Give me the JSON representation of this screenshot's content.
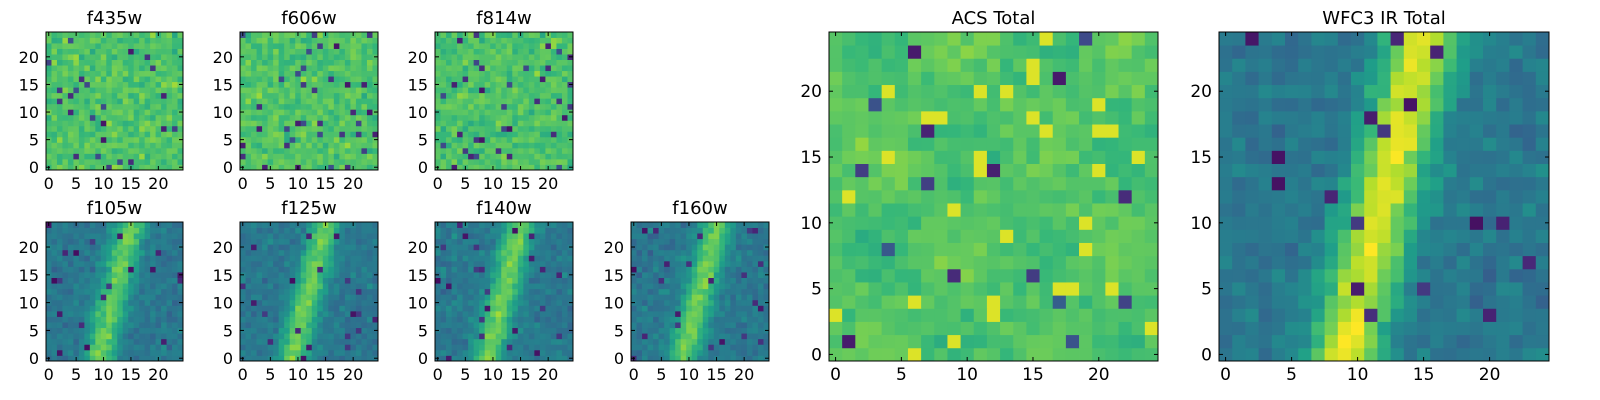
{
  "chart_data": [
    {
      "type": "heatmap",
      "title": "f435w",
      "xlabel": "",
      "ylabel": "",
      "xlim": [
        -0.5,
        24.5
      ],
      "ylim": [
        -0.5,
        24.5
      ],
      "xticks": [
        0,
        5,
        10,
        15,
        20
      ],
      "yticks": [
        0,
        5,
        10,
        15,
        20
      ],
      "grid": false,
      "colormap": "viridis",
      "pattern": "noise",
      "seed": 11
    },
    {
      "type": "heatmap",
      "title": "f606w",
      "xlabel": "",
      "ylabel": "",
      "xlim": [
        -0.5,
        24.5
      ],
      "ylim": [
        -0.5,
        24.5
      ],
      "xticks": [
        0,
        5,
        10,
        15,
        20
      ],
      "yticks": [
        0,
        5,
        10,
        15,
        20
      ],
      "grid": false,
      "colormap": "viridis",
      "pattern": "noise",
      "seed": 23
    },
    {
      "type": "heatmap",
      "title": "f814w",
      "xlabel": "",
      "ylabel": "",
      "xlim": [
        -0.5,
        24.5
      ],
      "ylim": [
        -0.5,
        24.5
      ],
      "xticks": [
        0,
        5,
        10,
        15,
        20
      ],
      "yticks": [
        0,
        5,
        10,
        15,
        20
      ],
      "grid": false,
      "colormap": "viridis",
      "pattern": "noise",
      "seed": 37
    },
    {
      "type": "heatmap",
      "title": "f105w",
      "xlabel": "",
      "ylabel": "",
      "xlim": [
        -0.5,
        24.5
      ],
      "ylim": [
        -0.5,
        24.5
      ],
      "xticks": [
        0,
        5,
        10,
        15,
        20
      ],
      "yticks": [
        0,
        5,
        10,
        15,
        20
      ],
      "grid": false,
      "colormap": "viridis",
      "pattern": "ridge",
      "seed": 41
    },
    {
      "type": "heatmap",
      "title": "f125w",
      "xlabel": "",
      "ylabel": "",
      "xlim": [
        -0.5,
        24.5
      ],
      "ylim": [
        -0.5,
        24.5
      ],
      "xticks": [
        0,
        5,
        10,
        15,
        20
      ],
      "yticks": [
        0,
        5,
        10,
        15,
        20
      ],
      "grid": false,
      "colormap": "viridis",
      "pattern": "ridge",
      "seed": 53
    },
    {
      "type": "heatmap",
      "title": "f140w",
      "xlabel": "",
      "ylabel": "",
      "xlim": [
        -0.5,
        24.5
      ],
      "ylim": [
        -0.5,
        24.5
      ],
      "xticks": [
        0,
        5,
        10,
        15,
        20
      ],
      "yticks": [
        0,
        5,
        10,
        15,
        20
      ],
      "grid": false,
      "colormap": "viridis",
      "pattern": "ridge",
      "seed": 67
    },
    {
      "type": "heatmap",
      "title": "f160w",
      "xlabel": "",
      "ylabel": "",
      "xlim": [
        -0.5,
        24.5
      ],
      "ylim": [
        -0.5,
        24.5
      ],
      "xticks": [
        0,
        5,
        10,
        15,
        20
      ],
      "yticks": [
        0,
        5,
        10,
        15,
        20
      ],
      "grid": false,
      "colormap": "viridis",
      "pattern": "ridge",
      "seed": 79
    },
    {
      "type": "heatmap",
      "title": "ACS Total",
      "xlabel": "",
      "ylabel": "",
      "xlim": [
        -0.5,
        24.5
      ],
      "ylim": [
        -0.5,
        24.5
      ],
      "xticks": [
        0,
        5,
        10,
        15,
        20
      ],
      "yticks": [
        0,
        5,
        10,
        15,
        20
      ],
      "grid": false,
      "colormap": "viridis",
      "pattern": "smoothnoise",
      "seed": 97
    },
    {
      "type": "heatmap",
      "title": "WFC3 IR Total",
      "xlabel": "",
      "ylabel": "",
      "xlim": [
        -0.5,
        24.5
      ],
      "ylim": [
        -0.5,
        24.5
      ],
      "xticks": [
        0,
        5,
        10,
        15,
        20
      ],
      "yticks": [
        0,
        5,
        10,
        15,
        20
      ],
      "grid": false,
      "colormap": "viridis",
      "pattern": "ridge_strong",
      "seed": 101
    }
  ]
}
